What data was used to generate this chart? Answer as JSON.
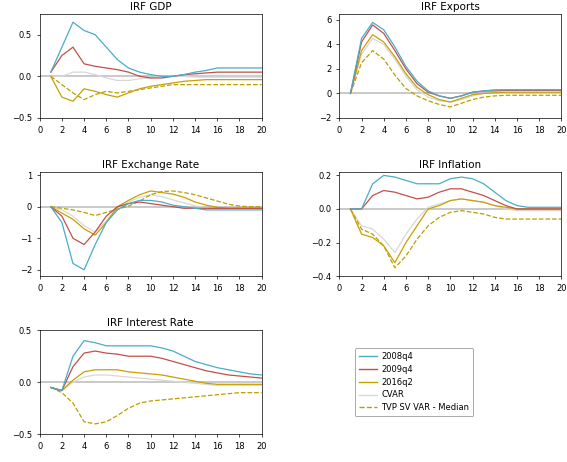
{
  "title_gdp": "IRF GDP",
  "title_exports": "IRF Exports",
  "title_exrate": "IRF Exchange Rate",
  "title_inflation": "IRF Inflation",
  "title_interest": "IRF Interest Rate",
  "x": [
    1,
    2,
    3,
    4,
    5,
    6,
    7,
    8,
    9,
    10,
    11,
    12,
    13,
    14,
    15,
    16,
    17,
    18,
    19,
    20
  ],
  "legend_labels": [
    "2008q4",
    "2009q4",
    "2016q2",
    "CVAR",
    "TVP SV VAR - Median"
  ],
  "colors": {
    "2008q4": "#4BACC6",
    "2009q4": "#C0504D",
    "2016q2": "#C8A000",
    "CVAR": "#D8D8D8",
    "TVP_median": "#B8A000"
  },
  "gdp": {
    "c2008q4": [
      0.05,
      0.35,
      0.65,
      0.55,
      0.5,
      0.35,
      0.2,
      0.1,
      0.05,
      0.02,
      0.0,
      0.0,
      0.02,
      0.05,
      0.07,
      0.1,
      0.1,
      0.1,
      0.1,
      0.1
    ],
    "c2009q4": [
      0.05,
      0.25,
      0.35,
      0.15,
      0.12,
      0.1,
      0.08,
      0.05,
      0.0,
      -0.02,
      -0.02,
      0.0,
      0.02,
      0.03,
      0.04,
      0.05,
      0.05,
      0.05,
      0.05,
      0.05
    ],
    "c2016q2": [
      0.0,
      -0.25,
      -0.3,
      -0.15,
      -0.18,
      -0.22,
      -0.25,
      -0.2,
      -0.15,
      -0.12,
      -0.1,
      -0.08,
      -0.06,
      -0.05,
      -0.04,
      -0.04,
      -0.04,
      -0.04,
      -0.04,
      -0.04
    ],
    "cvar": [
      0.0,
      0.0,
      0.05,
      0.05,
      0.02,
      -0.02,
      -0.05,
      -0.05,
      -0.03,
      -0.02,
      0.0,
      0.0,
      0.0,
      -0.01,
      -0.01,
      -0.01,
      -0.01,
      -0.01,
      -0.01,
      -0.01
    ],
    "tvp": [
      0.0,
      -0.1,
      -0.2,
      -0.28,
      -0.22,
      -0.18,
      -0.2,
      -0.18,
      -0.16,
      -0.14,
      -0.12,
      -0.1,
      -0.1,
      -0.1,
      -0.1,
      -0.1,
      -0.1,
      -0.1,
      -0.1,
      -0.1
    ]
  },
  "exports": {
    "c2008q4": [
      0.0,
      4.5,
      5.8,
      5.2,
      3.8,
      2.2,
      1.0,
      0.2,
      -0.2,
      -0.4,
      -0.2,
      0.1,
      0.2,
      0.3,
      0.3,
      0.3,
      0.3,
      0.3,
      0.3,
      0.3
    ],
    "c2009q4": [
      0.0,
      4.2,
      5.6,
      4.9,
      3.5,
      2.0,
      0.8,
      0.1,
      -0.2,
      -0.4,
      -0.2,
      0.1,
      0.2,
      0.2,
      0.25,
      0.25,
      0.25,
      0.25,
      0.25,
      0.25
    ],
    "c2016q2": [
      0.0,
      3.5,
      4.8,
      4.2,
      3.0,
      1.6,
      0.5,
      -0.1,
      -0.5,
      -0.7,
      -0.4,
      -0.1,
      0.0,
      0.05,
      0.1,
      0.1,
      0.1,
      0.1,
      0.1,
      0.1
    ],
    "cvar": [
      0.0,
      3.2,
      4.5,
      4.0,
      2.8,
      1.4,
      0.3,
      -0.3,
      -0.6,
      -0.7,
      -0.5,
      -0.2,
      0.0,
      0.0,
      0.05,
      0.05,
      0.05,
      0.05,
      0.05,
      0.05
    ],
    "tvp": [
      0.0,
      2.5,
      3.5,
      2.8,
      1.5,
      0.4,
      -0.2,
      -0.6,
      -0.9,
      -1.1,
      -0.8,
      -0.5,
      -0.3,
      -0.2,
      -0.15,
      -0.15,
      -0.15,
      -0.15,
      -0.15,
      -0.15
    ]
  },
  "exrate": {
    "c2008q4": [
      0.0,
      -0.5,
      -1.8,
      -2.0,
      -1.2,
      -0.5,
      -0.1,
      0.1,
      0.2,
      0.2,
      0.15,
      0.05,
      0.0,
      -0.05,
      -0.1,
      -0.1,
      -0.1,
      -0.1,
      -0.1,
      -0.1
    ],
    "c2009q4": [
      0.0,
      -0.3,
      -1.0,
      -1.2,
      -0.8,
      -0.3,
      0.0,
      0.1,
      0.15,
      0.1,
      0.05,
      0.0,
      -0.05,
      -0.05,
      -0.05,
      -0.05,
      -0.05,
      -0.05,
      -0.05,
      -0.05
    ],
    "c2016q2": [
      0.0,
      -0.2,
      -0.4,
      -0.7,
      -0.9,
      -0.5,
      0.0,
      0.2,
      0.38,
      0.5,
      0.45,
      0.4,
      0.3,
      0.15,
      0.05,
      -0.02,
      -0.05,
      -0.05,
      -0.05,
      -0.05
    ],
    "cvar": [
      0.0,
      -0.1,
      -0.3,
      -0.6,
      -0.8,
      -0.45,
      -0.05,
      0.15,
      0.3,
      0.38,
      0.32,
      0.22,
      0.12,
      0.03,
      -0.03,
      -0.05,
      -0.05,
      -0.05,
      -0.05,
      -0.05
    ],
    "tvp": [
      0.0,
      -0.05,
      -0.1,
      -0.18,
      -0.28,
      -0.18,
      -0.08,
      0.02,
      0.18,
      0.38,
      0.48,
      0.5,
      0.45,
      0.38,
      0.28,
      0.18,
      0.08,
      0.02,
      0.0,
      0.0
    ]
  },
  "inflation": {
    "c2008q4": [
      0.0,
      0.0,
      0.15,
      0.2,
      0.19,
      0.17,
      0.15,
      0.15,
      0.15,
      0.18,
      0.19,
      0.18,
      0.15,
      0.1,
      0.05,
      0.02,
      0.01,
      0.01,
      0.01,
      0.01
    ],
    "c2009q4": [
      0.0,
      0.0,
      0.08,
      0.11,
      0.1,
      0.08,
      0.06,
      0.07,
      0.1,
      0.12,
      0.12,
      0.1,
      0.08,
      0.05,
      0.02,
      0.0,
      0.0,
      0.0,
      0.0,
      0.0
    ],
    "c2016q2": [
      0.0,
      -0.15,
      -0.17,
      -0.22,
      -0.32,
      -0.2,
      -0.1,
      0.0,
      0.02,
      0.05,
      0.06,
      0.05,
      0.04,
      0.02,
      0.01,
      0.0,
      0.0,
      0.0,
      0.0,
      0.0
    ],
    "cvar": [
      0.0,
      -0.1,
      -0.12,
      -0.18,
      -0.26,
      -0.15,
      -0.06,
      0.01,
      0.03,
      0.05,
      0.06,
      0.05,
      0.04,
      0.02,
      0.0,
      -0.01,
      -0.01,
      -0.01,
      -0.01,
      -0.01
    ],
    "tvp": [
      0.0,
      -0.12,
      -0.15,
      -0.22,
      -0.35,
      -0.28,
      -0.18,
      -0.1,
      -0.05,
      -0.02,
      -0.01,
      -0.02,
      -0.03,
      -0.05,
      -0.06,
      -0.06,
      -0.06,
      -0.06,
      -0.06,
      -0.06
    ]
  },
  "interest": {
    "c2008q4": [
      -0.05,
      -0.08,
      0.25,
      0.4,
      0.38,
      0.35,
      0.35,
      0.35,
      0.35,
      0.35,
      0.33,
      0.3,
      0.25,
      0.2,
      0.17,
      0.14,
      0.12,
      0.1,
      0.08,
      0.07
    ],
    "c2009q4": [
      -0.05,
      -0.08,
      0.15,
      0.28,
      0.3,
      0.28,
      0.27,
      0.25,
      0.25,
      0.25,
      0.23,
      0.2,
      0.17,
      0.14,
      0.11,
      0.09,
      0.07,
      0.06,
      0.05,
      0.04
    ],
    "c2016q2": [
      -0.05,
      -0.08,
      0.02,
      0.1,
      0.12,
      0.12,
      0.12,
      0.1,
      0.09,
      0.08,
      0.07,
      0.05,
      0.03,
      0.01,
      -0.01,
      -0.02,
      -0.02,
      -0.02,
      -0.02,
      -0.02
    ],
    "cvar": [
      -0.05,
      -0.08,
      0.0,
      0.05,
      0.07,
      0.07,
      0.06,
      0.05,
      0.04,
      0.03,
      0.02,
      0.01,
      0.0,
      -0.01,
      -0.02,
      -0.03,
      -0.03,
      -0.03,
      -0.03,
      -0.03
    ],
    "tvp": [
      -0.05,
      -0.1,
      -0.2,
      -0.38,
      -0.4,
      -0.38,
      -0.32,
      -0.25,
      -0.2,
      -0.18,
      -0.17,
      -0.16,
      -0.15,
      -0.14,
      -0.13,
      -0.12,
      -0.11,
      -0.1,
      -0.1,
      -0.1
    ]
  },
  "ylim_gdp": [
    -0.5,
    0.75
  ],
  "ylim_exports": [
    -2,
    6.5
  ],
  "ylim_exrate": [
    -2.2,
    1.1
  ],
  "ylim_inflation": [
    -0.4,
    0.22
  ],
  "ylim_interest": [
    -0.5,
    0.5
  ],
  "yticks_gdp": [
    -0.5,
    0.0,
    0.5
  ],
  "yticks_exports": [
    -2,
    0,
    2,
    4,
    6
  ],
  "yticks_exrate": [
    -2,
    -1,
    0,
    1
  ],
  "yticks_inflation": [
    -0.4,
    -0.2,
    0.0,
    0.2
  ],
  "yticks_interest": [
    -0.5,
    0.0,
    0.5
  ],
  "xticks": [
    0,
    2,
    4,
    6,
    8,
    10,
    12,
    14,
    16,
    18,
    20
  ],
  "title_fontsize": 7.5,
  "tick_fontsize": 6
}
